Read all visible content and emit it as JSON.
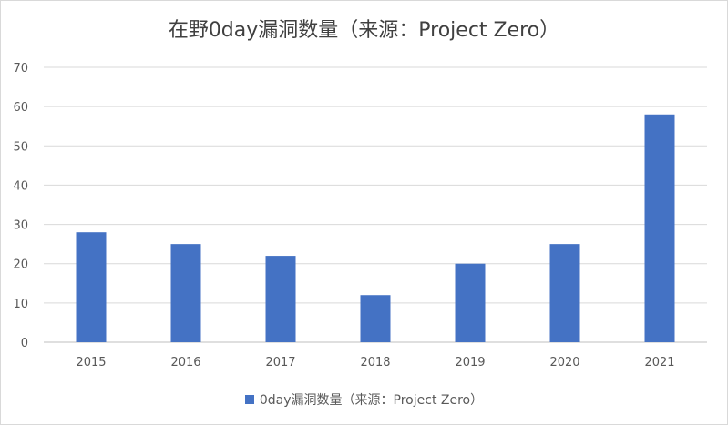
{
  "chart_data": {
    "type": "bar",
    "title": "在野0day漏洞数量（来源：Project Zero）",
    "categories": [
      "2015",
      "2016",
      "2017",
      "2018",
      "2019",
      "2020",
      "2021"
    ],
    "series": [
      {
        "name": "0day漏洞数量（来源：Project Zero）",
        "values": [
          28,
          25,
          22,
          12,
          20,
          25,
          58
        ],
        "color": "#4472c4"
      }
    ],
    "y_ticks": [
      "0",
      "10",
      "20",
      "30",
      "40",
      "50",
      "60",
      "70"
    ],
    "ylim": [
      0,
      70
    ],
    "grid": true,
    "legend_position": "bottom"
  }
}
